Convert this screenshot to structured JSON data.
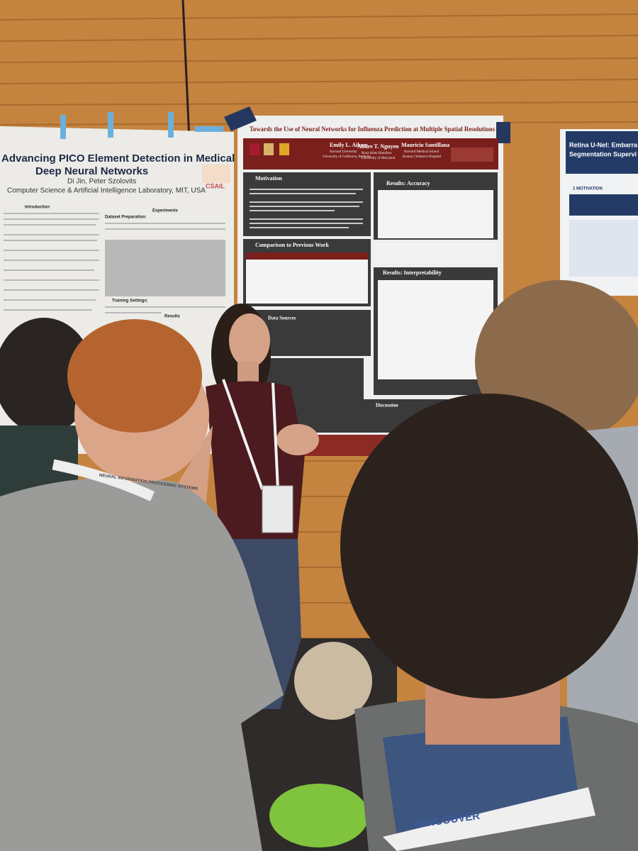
{
  "left_poster": {
    "title_line1": "Advancing PICO Element Detection in Medical Text via",
    "title_line2": "Deep Neural Networks",
    "authors": "Di Jin, Peter Szolovits",
    "affiliation": "Computer Science & Artificial Intelligence Laboratory, MIT, USA",
    "logo": "CSAIL",
    "sections": [
      "Introduction",
      "Experiments",
      "Dataset Preparation:",
      "Training Settings:",
      "Results"
    ]
  },
  "center_poster": {
    "title": "Towards the Use of Neural Networks for Influenza Prediction at Multiple Spatial Resolutions",
    "authors": [
      {
        "name": "Emily L. Aiken",
        "affiliations": [
          "Harvard University",
          "University of California, Berkeley"
        ]
      },
      {
        "name": "Andre T. Nguyen",
        "affiliations": [
          "Booz Allen Hamilton",
          "University of Maryland"
        ]
      },
      {
        "name": "Mauricio Santillana",
        "affiliations": [
          "Harvard Medical School",
          "Boston Children's Hospital"
        ]
      }
    ],
    "sections": [
      "Motivation",
      "Results: Accuracy",
      "Comparison to Previous Work",
      "Results: Interpretability",
      "Data Sources",
      "Discussion"
    ]
  },
  "right_poster": {
    "title_line1": "Retina U-Net: Embarra",
    "title_line2": "Segmentation Supervi",
    "section": "1 MOTIVATION"
  },
  "badges": [
    "NEURAL INFORMATION PROCESSING SYSTEMS",
    "VANCOUVER"
  ]
}
